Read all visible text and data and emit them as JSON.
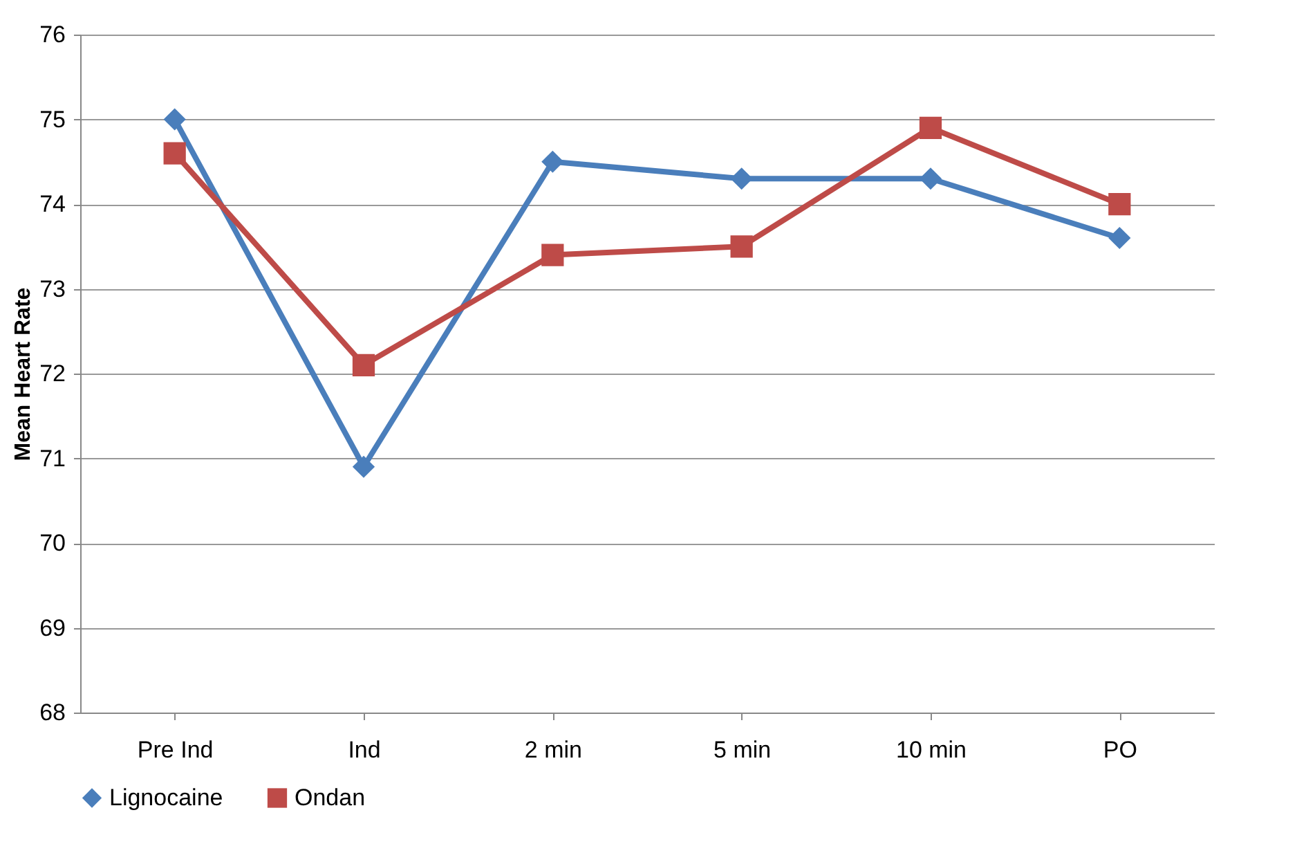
{
  "chart_data": {
    "type": "line",
    "ylabel": "Mean Heart Rate",
    "categories": [
      "Pre Ind",
      "Ind",
      "2 min",
      "5 min",
      "10 min",
      "PO"
    ],
    "series": [
      {
        "name": "Lignocaine",
        "color": "#4a7ebb",
        "marker": "diamond",
        "values": [
          75.0,
          70.9,
          74.5,
          74.3,
          74.3,
          73.6
        ]
      },
      {
        "name": "Ondan",
        "color": "#be4b48",
        "marker": "square",
        "values": [
          74.6,
          72.1,
          73.4,
          73.5,
          74.9,
          74.0
        ]
      }
    ],
    "ylim": [
      68,
      76
    ],
    "yticks": [
      68,
      69,
      70,
      71,
      72,
      73,
      74,
      75,
      76
    ],
    "grid": "y",
    "legend": "bottom"
  }
}
